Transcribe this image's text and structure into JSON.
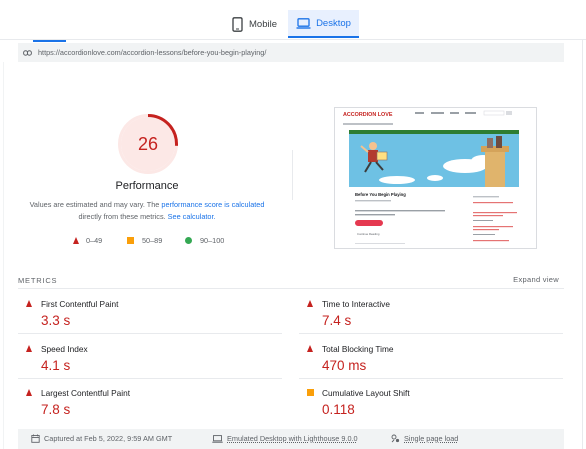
{
  "tabs": {
    "mobile": "Mobile",
    "desktop": "Desktop"
  },
  "url": "https://accordionlove.com/accordion-lessons/before-you-begin-playing/",
  "score": {
    "value": "26",
    "fraction": 0.26,
    "color": "#c5221f",
    "title": "Performance",
    "note_before": "Values are estimated and may vary. The ",
    "note_link1": "performance score is calculated",
    "note_middle": " directly from these metrics. ",
    "note_link2": "See calculator."
  },
  "legend": {
    "fail": "0–49",
    "average": "50–89",
    "pass": "90–100"
  },
  "thumbnail": {
    "site_logo": "ACCORDION LOVE",
    "post_title": "Before You Begin Playing",
    "button_label": "Continue Reading"
  },
  "metrics": {
    "label": "METRICS",
    "expand": "Expand view",
    "items": [
      {
        "name": "First Contentful Paint",
        "value": "3.3 s",
        "status": "fail"
      },
      {
        "name": "Time to Interactive",
        "value": "7.4 s",
        "status": "fail"
      },
      {
        "name": "Speed Index",
        "value": "4.1 s",
        "status": "fail"
      },
      {
        "name": "Total Blocking Time",
        "value": "470 ms",
        "status": "fail"
      },
      {
        "name": "Largest Contentful Paint",
        "value": "7.8 s",
        "status": "fail"
      },
      {
        "name": "Cumulative Layout Shift",
        "value": "0.118",
        "status": "average"
      }
    ]
  },
  "footer": {
    "captured": "Captured at Feb 5, 2022, 9:59 AM GMT",
    "emulated": "Emulated Desktop with Lighthouse 9.0.0",
    "single": "Single page load"
  },
  "colors": {
    "fail": "#c5221f",
    "average": "#fa9f0a",
    "pass": "#34a853",
    "accent": "#1a73e8"
  }
}
